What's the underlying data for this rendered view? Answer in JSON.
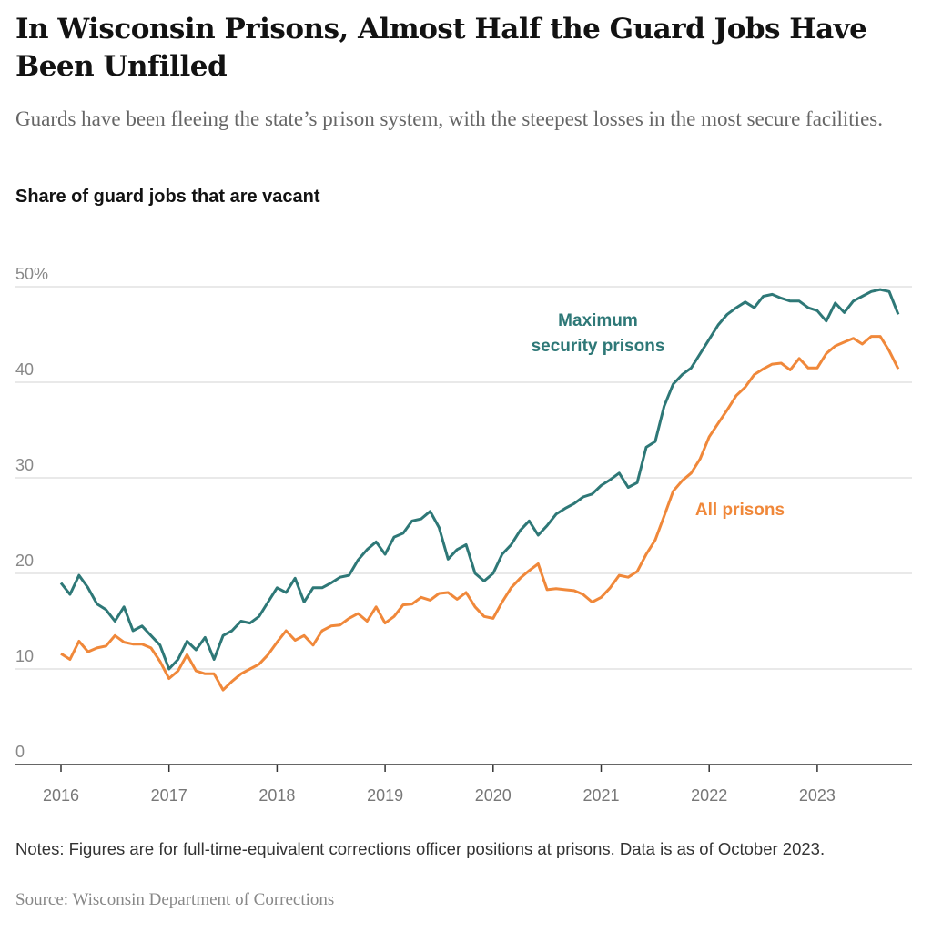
{
  "title": "In Wisconsin Prisons, Almost Half the Guard Jobs Have Been Unfilled",
  "subtitle": "Guards have been fleeing the state’s prison system, with the steepest losses in the most secure facilities.",
  "notes": "Notes: Figures are for full-time-equivalent corrections officer positions at prisons. Data is as of October 2023.",
  "source": "Source: Wisconsin Department of Corrections",
  "chart_data": {
    "type": "line",
    "title": "Share of guard jobs that are vacant",
    "xlabel": "",
    "ylabel": "",
    "ylim": [
      0,
      50
    ],
    "yticks": [
      0,
      10,
      20,
      30,
      40,
      50
    ],
    "ytick_labels": [
      "0",
      "10",
      "20",
      "30",
      "40",
      "50%"
    ],
    "xticks": [
      "2016",
      "2017",
      "2018",
      "2019",
      "2020",
      "2021",
      "2022",
      "2023"
    ],
    "grid": true,
    "legend": "direct labels",
    "colors": {
      "max": "#2e7877",
      "all": "#f0883a"
    },
    "x": [
      "2016-01",
      "2016-02",
      "2016-03",
      "2016-04",
      "2016-05",
      "2016-06",
      "2016-07",
      "2016-08",
      "2016-09",
      "2016-10",
      "2016-11",
      "2016-12",
      "2017-01",
      "2017-02",
      "2017-03",
      "2017-04",
      "2017-05",
      "2017-06",
      "2017-07",
      "2017-08",
      "2017-09",
      "2017-10",
      "2017-11",
      "2017-12",
      "2018-01",
      "2018-02",
      "2018-03",
      "2018-04",
      "2018-05",
      "2018-06",
      "2018-07",
      "2018-08",
      "2018-09",
      "2018-10",
      "2018-11",
      "2018-12",
      "2019-01",
      "2019-02",
      "2019-03",
      "2019-04",
      "2019-05",
      "2019-06",
      "2019-07",
      "2019-08",
      "2019-09",
      "2019-10",
      "2019-11",
      "2019-12",
      "2020-01",
      "2020-02",
      "2020-03",
      "2020-04",
      "2020-05",
      "2020-06",
      "2020-07",
      "2020-08",
      "2020-09",
      "2020-10",
      "2020-11",
      "2020-12",
      "2021-01",
      "2021-02",
      "2021-03",
      "2021-04",
      "2021-05",
      "2021-06",
      "2021-07",
      "2021-08",
      "2021-09",
      "2021-10",
      "2021-11",
      "2021-12",
      "2022-01",
      "2022-02",
      "2022-03",
      "2022-04",
      "2022-05",
      "2022-06",
      "2022-07",
      "2022-08",
      "2022-09",
      "2022-10",
      "2022-11",
      "2022-12",
      "2023-01",
      "2023-02",
      "2023-03",
      "2023-04",
      "2023-05",
      "2023-06",
      "2023-07",
      "2023-08",
      "2023-09",
      "2023-10"
    ],
    "series": [
      {
        "name": "Maximum security prisons",
        "key": "max",
        "values": [
          19.0,
          17.8,
          19.8,
          18.5,
          16.8,
          16.2,
          15.0,
          16.5,
          14.0,
          14.5,
          13.5,
          12.5,
          10.0,
          11.0,
          12.9,
          12.0,
          13.3,
          11.0,
          13.5,
          14.0,
          15.0,
          14.8,
          15.5,
          17.0,
          18.5,
          18.0,
          19.5,
          17.0,
          18.5,
          18.5,
          19.0,
          19.6,
          19.8,
          21.4,
          22.5,
          23.3,
          22.0,
          23.8,
          24.2,
          25.5,
          25.7,
          26.5,
          24.8,
          21.5,
          22.5,
          23.0,
          20.0,
          19.2,
          20.0,
          22.0,
          23.0,
          24.5,
          25.5,
          24.0,
          25.0,
          26.2,
          26.8,
          27.3,
          28.0,
          28.3,
          29.2,
          29.8,
          30.5,
          29.0,
          29.5,
          33.2,
          33.8,
          37.5,
          39.8,
          40.8,
          41.5,
          43.0,
          44.5,
          46.0,
          47.1,
          47.8,
          48.4,
          47.8,
          49.0,
          49.2,
          48.8,
          48.5,
          48.5,
          47.8,
          47.5,
          46.4,
          48.3,
          47.3,
          48.5,
          49.0,
          49.5,
          49.7,
          49.5,
          47.1
        ]
      },
      {
        "name": "All prisons",
        "key": "all",
        "values": [
          11.6,
          11.0,
          12.9,
          11.8,
          12.2,
          12.4,
          13.5,
          12.8,
          12.6,
          12.6,
          12.2,
          10.8,
          9.0,
          9.8,
          11.5,
          9.8,
          9.5,
          9.5,
          7.8,
          8.7,
          9.5,
          10.0,
          10.5,
          11.5,
          12.8,
          14.0,
          13.0,
          13.5,
          12.5,
          14.0,
          14.5,
          14.6,
          15.3,
          15.8,
          15.0,
          16.5,
          14.8,
          15.5,
          16.7,
          16.8,
          17.5,
          17.2,
          17.9,
          18.0,
          17.3,
          18.0,
          16.5,
          15.5,
          15.3,
          17.0,
          18.5,
          19.5,
          20.3,
          21.0,
          18.3,
          18.4,
          18.3,
          18.2,
          17.8,
          17.0,
          17.5,
          18.5,
          19.8,
          19.6,
          20.2,
          22.0,
          23.5,
          26.0,
          28.6,
          29.7,
          30.5,
          32.0,
          34.3,
          35.7,
          37.1,
          38.6,
          39.5,
          40.8,
          41.4,
          41.9,
          42.0,
          41.3,
          42.5,
          41.5,
          41.5,
          43.0,
          43.8,
          44.2,
          44.6,
          44.0,
          44.8,
          44.8,
          43.3,
          41.4
        ]
      }
    ],
    "annotations": {
      "max": [
        "Maximum",
        "security prisons"
      ],
      "all": "All prisons"
    }
  }
}
